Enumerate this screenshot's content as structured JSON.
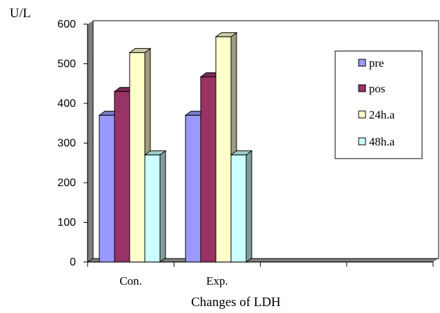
{
  "chart_data": {
    "type": "bar",
    "style": "3d-clustered-column",
    "categories": [
      "Con.",
      "Exp."
    ],
    "series": [
      {
        "name": "pre",
        "values": [
          370,
          370
        ],
        "color": "#9999ff"
      },
      {
        "name": "pos",
        "values": [
          430,
          467
        ],
        "color": "#993366"
      },
      {
        "name": "24h.a",
        "values": [
          528,
          568
        ],
        "color": "#ffffcc"
      },
      {
        "name": "48h.a",
        "values": [
          270,
          270
        ],
        "color": "#ccffff"
      }
    ],
    "ylabel": "U/L",
    "xlabel": "Changes of LDH",
    "ylim": [
      0,
      600
    ],
    "yticks": [
      0,
      100,
      200,
      300,
      400,
      500,
      600
    ],
    "legend_position": "right",
    "grid": false,
    "plot_background": "#ffffff",
    "wall_shadow_color": "#808080"
  }
}
